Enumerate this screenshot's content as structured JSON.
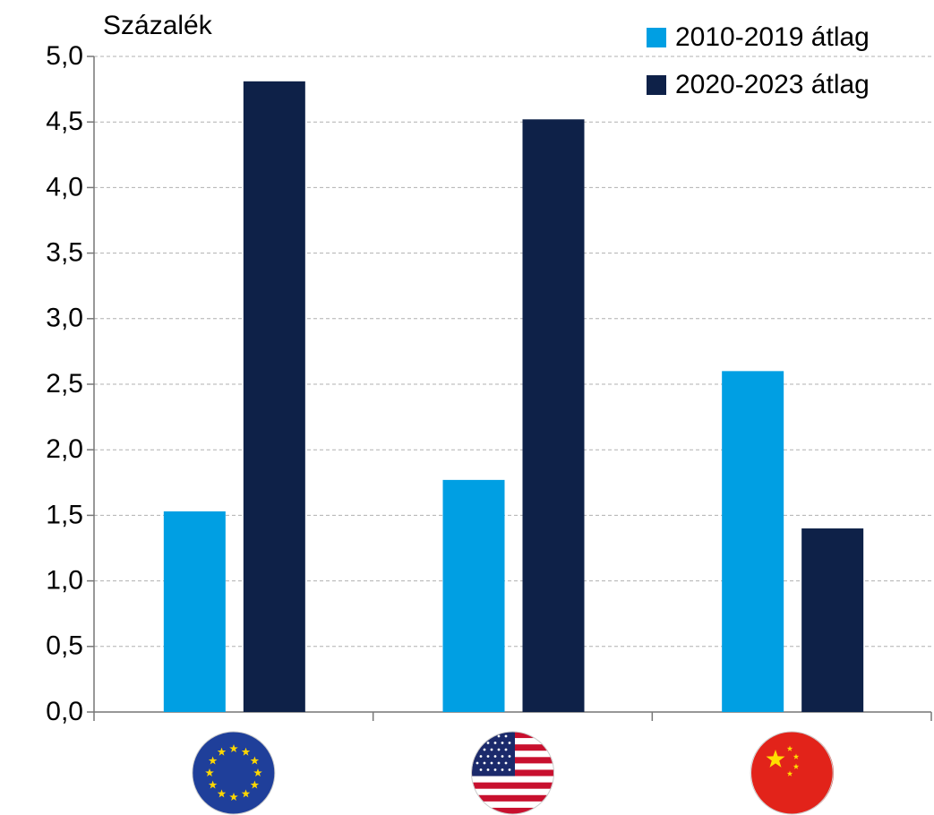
{
  "chart_data": {
    "type": "bar",
    "y_axis_label": "Százalék",
    "categories": [
      null,
      null,
      null
    ],
    "series": [
      {
        "name": "2010-2019 átlag",
        "color": "#009fe3",
        "values": [
          1.53,
          1.77,
          2.6
        ]
      },
      {
        "name": "2020-2023 átlag",
        "color": "#0e2148",
        "values": [
          4.81,
          4.52,
          1.4
        ]
      }
    ],
    "ylim": [
      0,
      5
    ],
    "yticks": [
      {
        "value": 0,
        "label": "0,0"
      },
      {
        "value": 0.5,
        "label": "0,5"
      },
      {
        "value": 1,
        "label": "1,0"
      },
      {
        "value": 1.5,
        "label": "1,5"
      },
      {
        "value": 2,
        "label": "2,0"
      },
      {
        "value": 2.5,
        "label": "2,5"
      },
      {
        "value": 3,
        "label": "3,0"
      },
      {
        "value": 3.5,
        "label": "3,5"
      },
      {
        "value": 4,
        "label": "4,0"
      },
      {
        "value": 4.5,
        "label": "4,5"
      },
      {
        "value": 5,
        "label": "5,0"
      }
    ],
    "grid": true,
    "legend": "upper right"
  }
}
